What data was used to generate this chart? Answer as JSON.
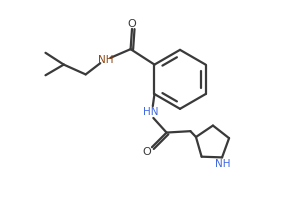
{
  "bg_color": "#ffffff",
  "line_color": "#3a3a3a",
  "nh_color": "#8B4513",
  "hn_color": "#4169E1",
  "lw": 1.6,
  "fig_width": 2.87,
  "fig_height": 1.98,
  "dpi": 100,
  "xlim": [
    0,
    10
  ],
  "ylim": [
    0,
    7
  ]
}
